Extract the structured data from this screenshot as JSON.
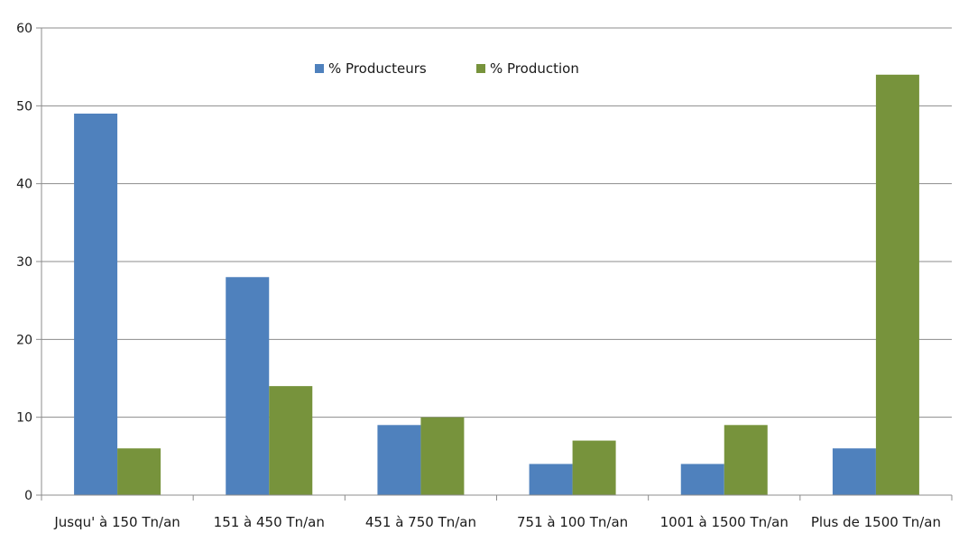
{
  "chart_data": {
    "type": "bar",
    "categories": [
      "Jusqu' à 150 Tn/an",
      "151 à 450 Tn/an",
      "451 à 750 Tn/an",
      "751 à 100 Tn/an",
      "1001 à 1500 Tn/an",
      "Plus de 1500 Tn/an"
    ],
    "series": [
      {
        "name": "% Producteurs",
        "color": "#4f81bd",
        "values": [
          49,
          28,
          9,
          4,
          4,
          6
        ]
      },
      {
        "name": "% Production",
        "color": "#77933c",
        "values": [
          6,
          14,
          10,
          7,
          9,
          54
        ]
      }
    ],
    "yticks": [
      0,
      10,
      20,
      30,
      40,
      50,
      60
    ],
    "ylim": [
      0,
      60
    ],
    "grid": true,
    "legend_position": "top-center",
    "title": "",
    "xlabel": "",
    "ylabel": ""
  }
}
